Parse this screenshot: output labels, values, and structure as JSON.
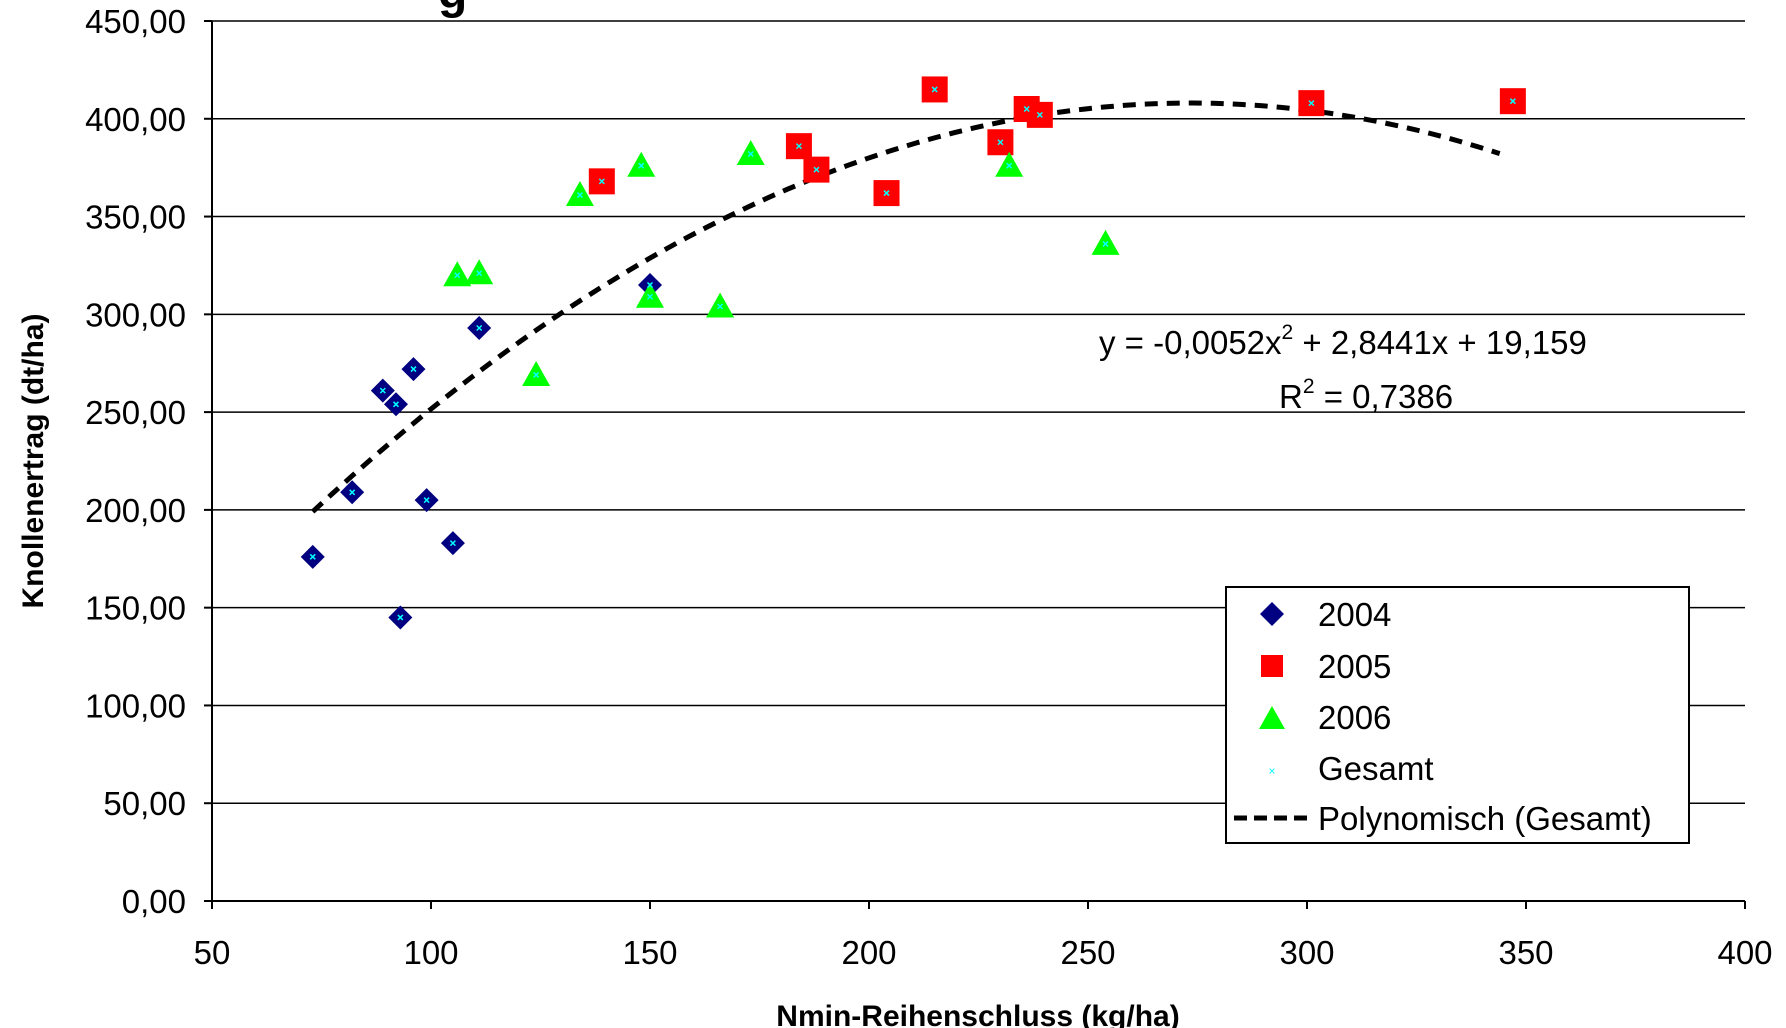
{
  "chart_data": {
    "type": "scatter",
    "title_fragment": "g",
    "xlabel": "Nmin-Reihenschluss (kg/ha)",
    "ylabel": "Knollenertrag (dt/ha)",
    "xlim": [
      50,
      400
    ],
    "ylim": [
      0,
      450
    ],
    "x_ticks": [
      "50",
      "100",
      "150",
      "200",
      "250",
      "300",
      "350",
      "400"
    ],
    "y_ticks": [
      "0,00",
      "50,00",
      "100,00",
      "150,00",
      "200,00",
      "250,00",
      "300,00",
      "350,00",
      "400,00",
      "450,00"
    ],
    "grid": "horizontal",
    "legend_position": "bottom-right",
    "series": [
      {
        "name": "2004",
        "marker": "diamond",
        "color": "#000080",
        "points": [
          [
            73,
            176
          ],
          [
            82,
            209
          ],
          [
            89,
            261
          ],
          [
            92,
            254
          ],
          [
            93,
            145
          ],
          [
            96,
            272
          ],
          [
            99,
            205
          ],
          [
            105,
            183
          ],
          [
            111,
            293
          ],
          [
            150,
            315
          ]
        ]
      },
      {
        "name": "2005",
        "marker": "square",
        "color": "#ff0000",
        "points": [
          [
            139,
            368
          ],
          [
            184,
            386
          ],
          [
            188,
            374
          ],
          [
            204,
            362
          ],
          [
            215,
            415
          ],
          [
            230,
            388
          ],
          [
            236,
            405
          ],
          [
            239,
            402
          ],
          [
            301,
            408
          ],
          [
            347,
            409
          ]
        ]
      },
      {
        "name": "2006",
        "marker": "triangle",
        "color": "#00ff00",
        "points": [
          [
            106,
            320
          ],
          [
            111,
            321
          ],
          [
            124,
            269
          ],
          [
            134,
            361
          ],
          [
            148,
            376
          ],
          [
            150,
            309
          ],
          [
            166,
            304
          ],
          [
            173,
            382
          ],
          [
            232,
            376
          ],
          [
            254,
            336
          ]
        ]
      },
      {
        "name": "Gesamt",
        "marker": "x",
        "color": "#00ffff",
        "points": [
          [
            73,
            176
          ],
          [
            82,
            209
          ],
          [
            89,
            261
          ],
          [
            92,
            254
          ],
          [
            93,
            145
          ],
          [
            96,
            272
          ],
          [
            99,
            205
          ],
          [
            105,
            183
          ],
          [
            111,
            293
          ],
          [
            150,
            315
          ],
          [
            139,
            368
          ],
          [
            184,
            386
          ],
          [
            188,
            374
          ],
          [
            204,
            362
          ],
          [
            215,
            415
          ],
          [
            230,
            388
          ],
          [
            236,
            405
          ],
          [
            239,
            402
          ],
          [
            301,
            408
          ],
          [
            347,
            409
          ],
          [
            106,
            320
          ],
          [
            111,
            321
          ],
          [
            124,
            269
          ],
          [
            134,
            361
          ],
          [
            148,
            376
          ],
          [
            150,
            309
          ],
          [
            166,
            304
          ],
          [
            173,
            382
          ],
          [
            232,
            376
          ],
          [
            254,
            336
          ]
        ]
      }
    ],
    "trendline": {
      "name": "Polynomisch (Gesamt)",
      "type": "polynomial",
      "coefficients": {
        "a": -0.0052,
        "b": 2.8441,
        "c": 19.159
      },
      "x_range": [
        73,
        344
      ],
      "color": "#000000",
      "equation_text": {
        "prefix": "y = -0,0052x",
        "sup": "2",
        "suffix": " + 2,8441x + 19,159"
      },
      "r2_text": {
        "prefix": "R",
        "sup": "2",
        "suffix": " = 0,7386"
      }
    }
  }
}
